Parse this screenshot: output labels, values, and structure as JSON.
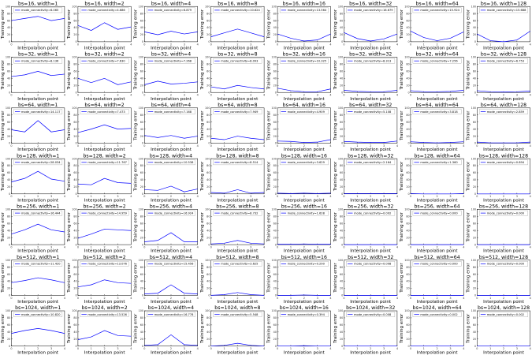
{
  "figure": {
    "ylabel": "Training error",
    "xlabel": "Interpolation point",
    "legend_prefix": "mode_connectivity=",
    "x_ticks": [
      "0",
      "1",
      "2",
      "3",
      "4"
    ],
    "y_ticks": [
      "0",
      "20",
      "40",
      "60",
      "80",
      "100"
    ],
    "line_color": "#0000ff"
  },
  "chart_data": {
    "type": "line",
    "grid": "8 columns x 7 rows of small line plots",
    "x": [
      0,
      1,
      2,
      3,
      4
    ],
    "ylim": [
      0,
      100
    ],
    "xlim": [
      0,
      4
    ],
    "legend_placement": "top",
    "panels": [
      [
        {
          "title": "bs=16, width=1",
          "legend": "mode_connectivity=6.065",
          "y": [
            60,
            66,
            72,
            60,
            66
          ]
        },
        {
          "title": "bs=16, width=2",
          "legend": "mode_connectivity=4.686",
          "y": [
            46,
            32,
            54,
            35,
            42
          ]
        },
        {
          "title": "bs=16, width=4",
          "legend": "mode_connectivity=6.879",
          "y": [
            28,
            20,
            30,
            22,
            28
          ]
        },
        {
          "title": "bs=16, width=8",
          "legend": "mode_connectivity=10.624",
          "y": [
            14,
            25,
            36,
            25,
            14
          ]
        },
        {
          "title": "bs=16, width=16",
          "legend": "mode_connectivity=13.564",
          "y": [
            22,
            10,
            2,
            5,
            22
          ]
        },
        {
          "title": "bs=16, width=32",
          "legend": "mode_connectivity=16.679",
          "y": [
            26,
            9,
            2,
            8,
            22
          ]
        },
        {
          "title": "bs=16, width=64",
          "legend": "mode_connectivity=15.924",
          "y": [
            30,
            12,
            3,
            10,
            28
          ]
        },
        {
          "title": "bs=16, width=128",
          "legend": "mode_connectivity=15.688",
          "y": [
            22,
            3,
            0,
            5,
            30
          ]
        }
      ],
      [
        {
          "title": "bs=32, width=1",
          "legend": "mode_connectivity=8.136",
          "y": [
            45,
            50,
            60,
            48,
            52
          ]
        },
        {
          "title": "bs=32, width=2",
          "legend": "mode_connectivity=7.630",
          "y": [
            40,
            28,
            40,
            22,
            30
          ]
        },
        {
          "title": "bs=32, width=4",
          "legend": "mode_connectivity=7.268",
          "y": [
            22,
            32,
            24,
            26,
            30
          ]
        },
        {
          "title": "bs=32, width=8",
          "legend": "mode_connectivity=8.093",
          "y": [
            16,
            10,
            20,
            14,
            10
          ]
        },
        {
          "title": "bs=32, width=16",
          "legend": "mode_connectivity=10.325",
          "y": [
            12,
            5,
            2,
            2,
            10
          ]
        },
        {
          "title": "bs=32, width=32",
          "legend": "mode_connectivity=8.313",
          "y": [
            6,
            3,
            2,
            2,
            6
          ]
        },
        {
          "title": "bs=32, width=64",
          "legend": "mode_connectivity=7.256",
          "y": [
            5,
            2,
            2,
            3,
            6
          ]
        },
        {
          "title": "bs=32, width=128",
          "legend": "mode_connectivity=6.753",
          "y": [
            5,
            2,
            1,
            2,
            4
          ]
        }
      ],
      [
        {
          "title": "bs=64, width=1",
          "legend": "mode_connectivity=14.117",
          "y": [
            38,
            32,
            64,
            32,
            38
          ]
        },
        {
          "title": "bs=64, width=2",
          "legend": "mode_connectivity=7.473",
          "y": [
            30,
            40,
            52,
            40,
            42
          ]
        },
        {
          "title": "bs=64, width=4",
          "legend": "mode_connectivity=7.168",
          "y": [
            22,
            16,
            22,
            14,
            20
          ]
        },
        {
          "title": "bs=64, width=8",
          "legend": "mode_connectivity=7.949",
          "y": [
            14,
            10,
            20,
            14,
            10
          ]
        },
        {
          "title": "bs=64, width=16",
          "legend": "mode_connectivity=4.909",
          "y": [
            6,
            5,
            2,
            3,
            10
          ]
        },
        {
          "title": "bs=64, width=32",
          "legend": "mode_connectivity=5.108",
          "y": [
            5,
            3,
            2,
            2,
            6
          ]
        },
        {
          "title": "bs=64, width=64",
          "legend": "mode_connectivity=3.818",
          "y": [
            4,
            2,
            1,
            2,
            4
          ]
        },
        {
          "title": "bs=64, width=128",
          "legend": "mode_connectivity=2.859",
          "y": [
            3,
            1,
            1,
            1,
            3
          ]
        }
      ],
      [
        {
          "title": "bs=128, width=1",
          "legend": "mode_connectivity=28.034",
          "y": [
            34,
            44,
            64,
            42,
            36
          ]
        },
        {
          "title": "bs=128, width=2",
          "legend": "mode_connectivity=11.767",
          "y": [
            28,
            26,
            44,
            32,
            30
          ]
        },
        {
          "title": "bs=128, width=4",
          "legend": "mode_connectivity=10.538",
          "y": [
            12,
            10,
            22,
            6,
            14
          ]
        },
        {
          "title": "bs=128, width=8",
          "legend": "mode_connectivity=8.514",
          "y": [
            4,
            2,
            12,
            2,
            4
          ]
        },
        {
          "title": "bs=128, width=16",
          "legend": "mode_connectivity=3.629",
          "y": [
            2,
            1,
            2,
            1,
            2
          ]
        },
        {
          "title": "bs=128, width=32",
          "legend": "mode_connectivity=2.164",
          "y": [
            1,
            1,
            1,
            1,
            1
          ]
        },
        {
          "title": "bs=128, width=64",
          "legend": "mode_connectivity=1.360",
          "y": [
            1,
            0,
            0,
            0,
            1
          ]
        },
        {
          "title": "bs=128, width=128",
          "legend": "mode_connectivity=0.894",
          "y": [
            0,
            0,
            0,
            0,
            0
          ]
        }
      ],
      [
        {
          "title": "bs=256, width=1",
          "legend": "mode_connectivity=16.444",
          "y": [
            30,
            42,
            58,
            42,
            36
          ]
        },
        {
          "title": "bs=256, width=2",
          "legend": "mode_connectivity=14.959",
          "y": [
            18,
            30,
            44,
            42,
            40
          ]
        },
        {
          "title": "bs=256, width=4",
          "legend": "mode_connectivity=16.924",
          "y": [
            8,
            12,
            34,
            8,
            8
          ]
        },
        {
          "title": "bs=256, width=8",
          "legend": "mode_connectivity=8.732",
          "y": [
            2,
            4,
            12,
            4,
            2
          ]
        },
        {
          "title": "bs=256, width=16",
          "legend": "mode_connectivity=1.628",
          "y": [
            1,
            1,
            2,
            1,
            1
          ]
        },
        {
          "title": "bs=256, width=32",
          "legend": "mode_connectivity=0.092",
          "y": [
            0,
            0,
            0,
            0,
            0
          ]
        },
        {
          "title": "bs=256, width=64",
          "legend": "mode_connectivity=0.000",
          "y": [
            0,
            0,
            0,
            0,
            0
          ]
        },
        {
          "title": "bs=256, width=128",
          "legend": "mode_connectivity=0.000",
          "y": [
            0,
            0,
            0,
            0,
            0
          ]
        }
      ],
      [
        {
          "title": "bs=512, width=1",
          "legend": "mode_connectivity=11.420",
          "y": [
            36,
            42,
            50,
            44,
            36
          ]
        },
        {
          "title": "bs=512, width=2",
          "legend": "mode_connectivity=13.076",
          "y": [
            24,
            30,
            44,
            36,
            34
          ]
        },
        {
          "title": "bs=512, width=4",
          "legend": "mode_connectivity=15.456",
          "y": [
            4,
            6,
            30,
            6,
            4
          ]
        },
        {
          "title": "bs=512, width=8",
          "legend": "mode_connectivity=3.625",
          "y": [
            0,
            2,
            8,
            2,
            0
          ]
        },
        {
          "title": "bs=512, width=16",
          "legend": "mode_connectivity=0.290",
          "y": [
            0,
            0,
            1,
            0,
            0
          ]
        },
        {
          "title": "bs=512, width=32",
          "legend": "mode_connectivity=0.008",
          "y": [
            0,
            0,
            0,
            0,
            0
          ]
        },
        {
          "title": "bs=512, width=64",
          "legend": "mode_connectivity=0.000",
          "y": [
            0,
            0,
            0,
            0,
            0
          ]
        },
        {
          "title": "bs=512, width=128",
          "legend": "mode_connectivity=0.000",
          "y": [
            0,
            0,
            0,
            0,
            0
          ]
        }
      ],
      [
        {
          "title": "bs=1024, width=1",
          "legend": "mode_connectivity=10.820",
          "y": [
            36,
            44,
            50,
            44,
            36
          ]
        },
        {
          "title": "bs=1024, width=2",
          "legend": "mode_connectivity=13.526",
          "y": [
            18,
            26,
            44,
            30,
            28
          ]
        },
        {
          "title": "bs=1024, width=4",
          "legend": "mode_connectivity=16.778",
          "y": [
            2,
            4,
            32,
            4,
            2
          ]
        },
        {
          "title": "bs=1024, width=8",
          "legend": "mode_connectivity=5.548",
          "y": [
            0,
            2,
            8,
            2,
            0
          ]
        },
        {
          "title": "bs=1024, width=16",
          "legend": "mode_connectivity=0.394",
          "y": [
            0,
            0,
            1,
            0,
            0
          ]
        },
        {
          "title": "bs=1024, width=32",
          "legend": "mode_connectivity=0.008",
          "y": [
            0,
            0,
            0,
            0,
            0
          ]
        },
        {
          "title": "bs=1024, width=64",
          "legend": "mode_connectivity=0.002",
          "y": [
            0,
            0,
            0,
            0,
            0
          ]
        },
        {
          "title": "bs=1024, width=128",
          "legend": "mode_connectivity=0.002",
          "y": [
            0,
            0,
            0,
            0,
            0
          ]
        }
      ]
    ]
  }
}
